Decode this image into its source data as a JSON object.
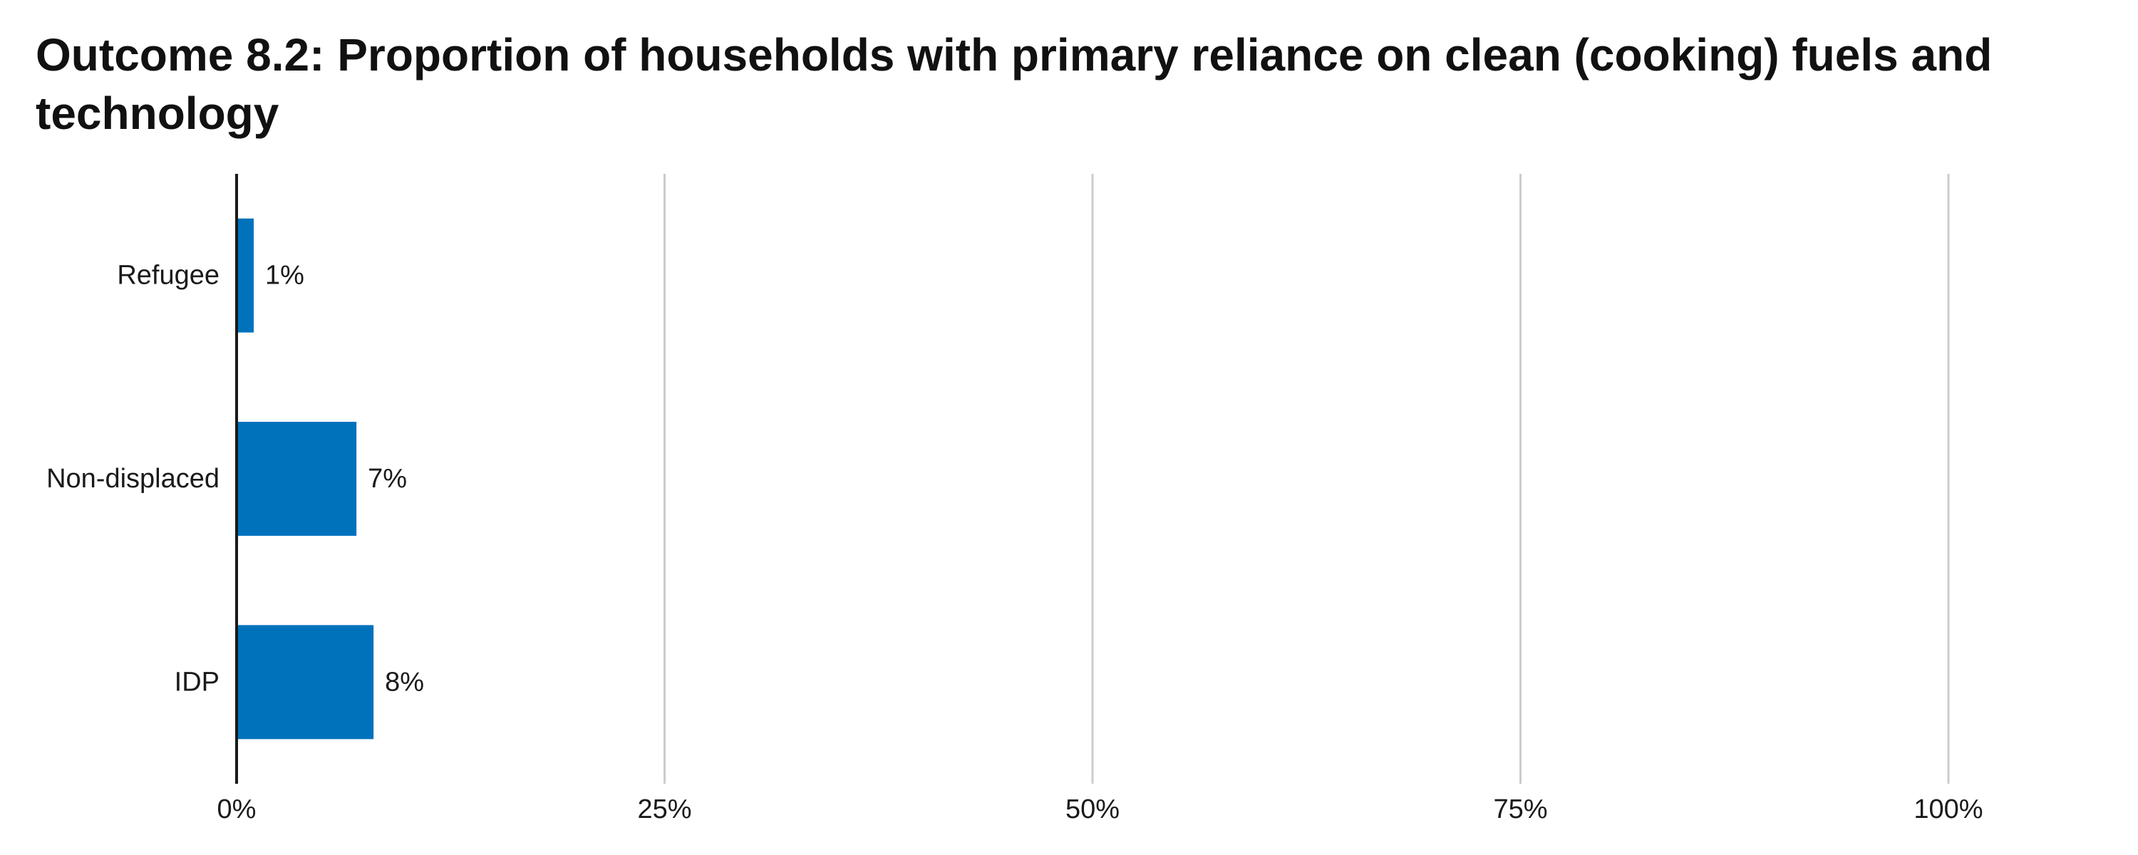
{
  "chart_data": {
    "type": "bar",
    "orientation": "horizontal",
    "title": "Outcome 8.2: Proportion of households with primary reliance on clean (cooking) fuels and technology",
    "categories": [
      "Refugee",
      "Non-displaced",
      "IDP"
    ],
    "values": [
      1,
      7,
      8
    ],
    "value_labels": [
      "1%",
      "7%",
      "8%"
    ],
    "xlim": [
      0,
      100
    ],
    "x_ticks": [
      0,
      25,
      50,
      75,
      100
    ],
    "x_tick_labels": [
      "0%",
      "25%",
      "50%",
      "75%",
      "100%"
    ],
    "xlabel": "",
    "ylabel": "",
    "grid": true,
    "legend": "none",
    "colors": {
      "bar": "#0072BC",
      "grid": "#CCCCCC",
      "axis": "#1A1A1A"
    }
  }
}
